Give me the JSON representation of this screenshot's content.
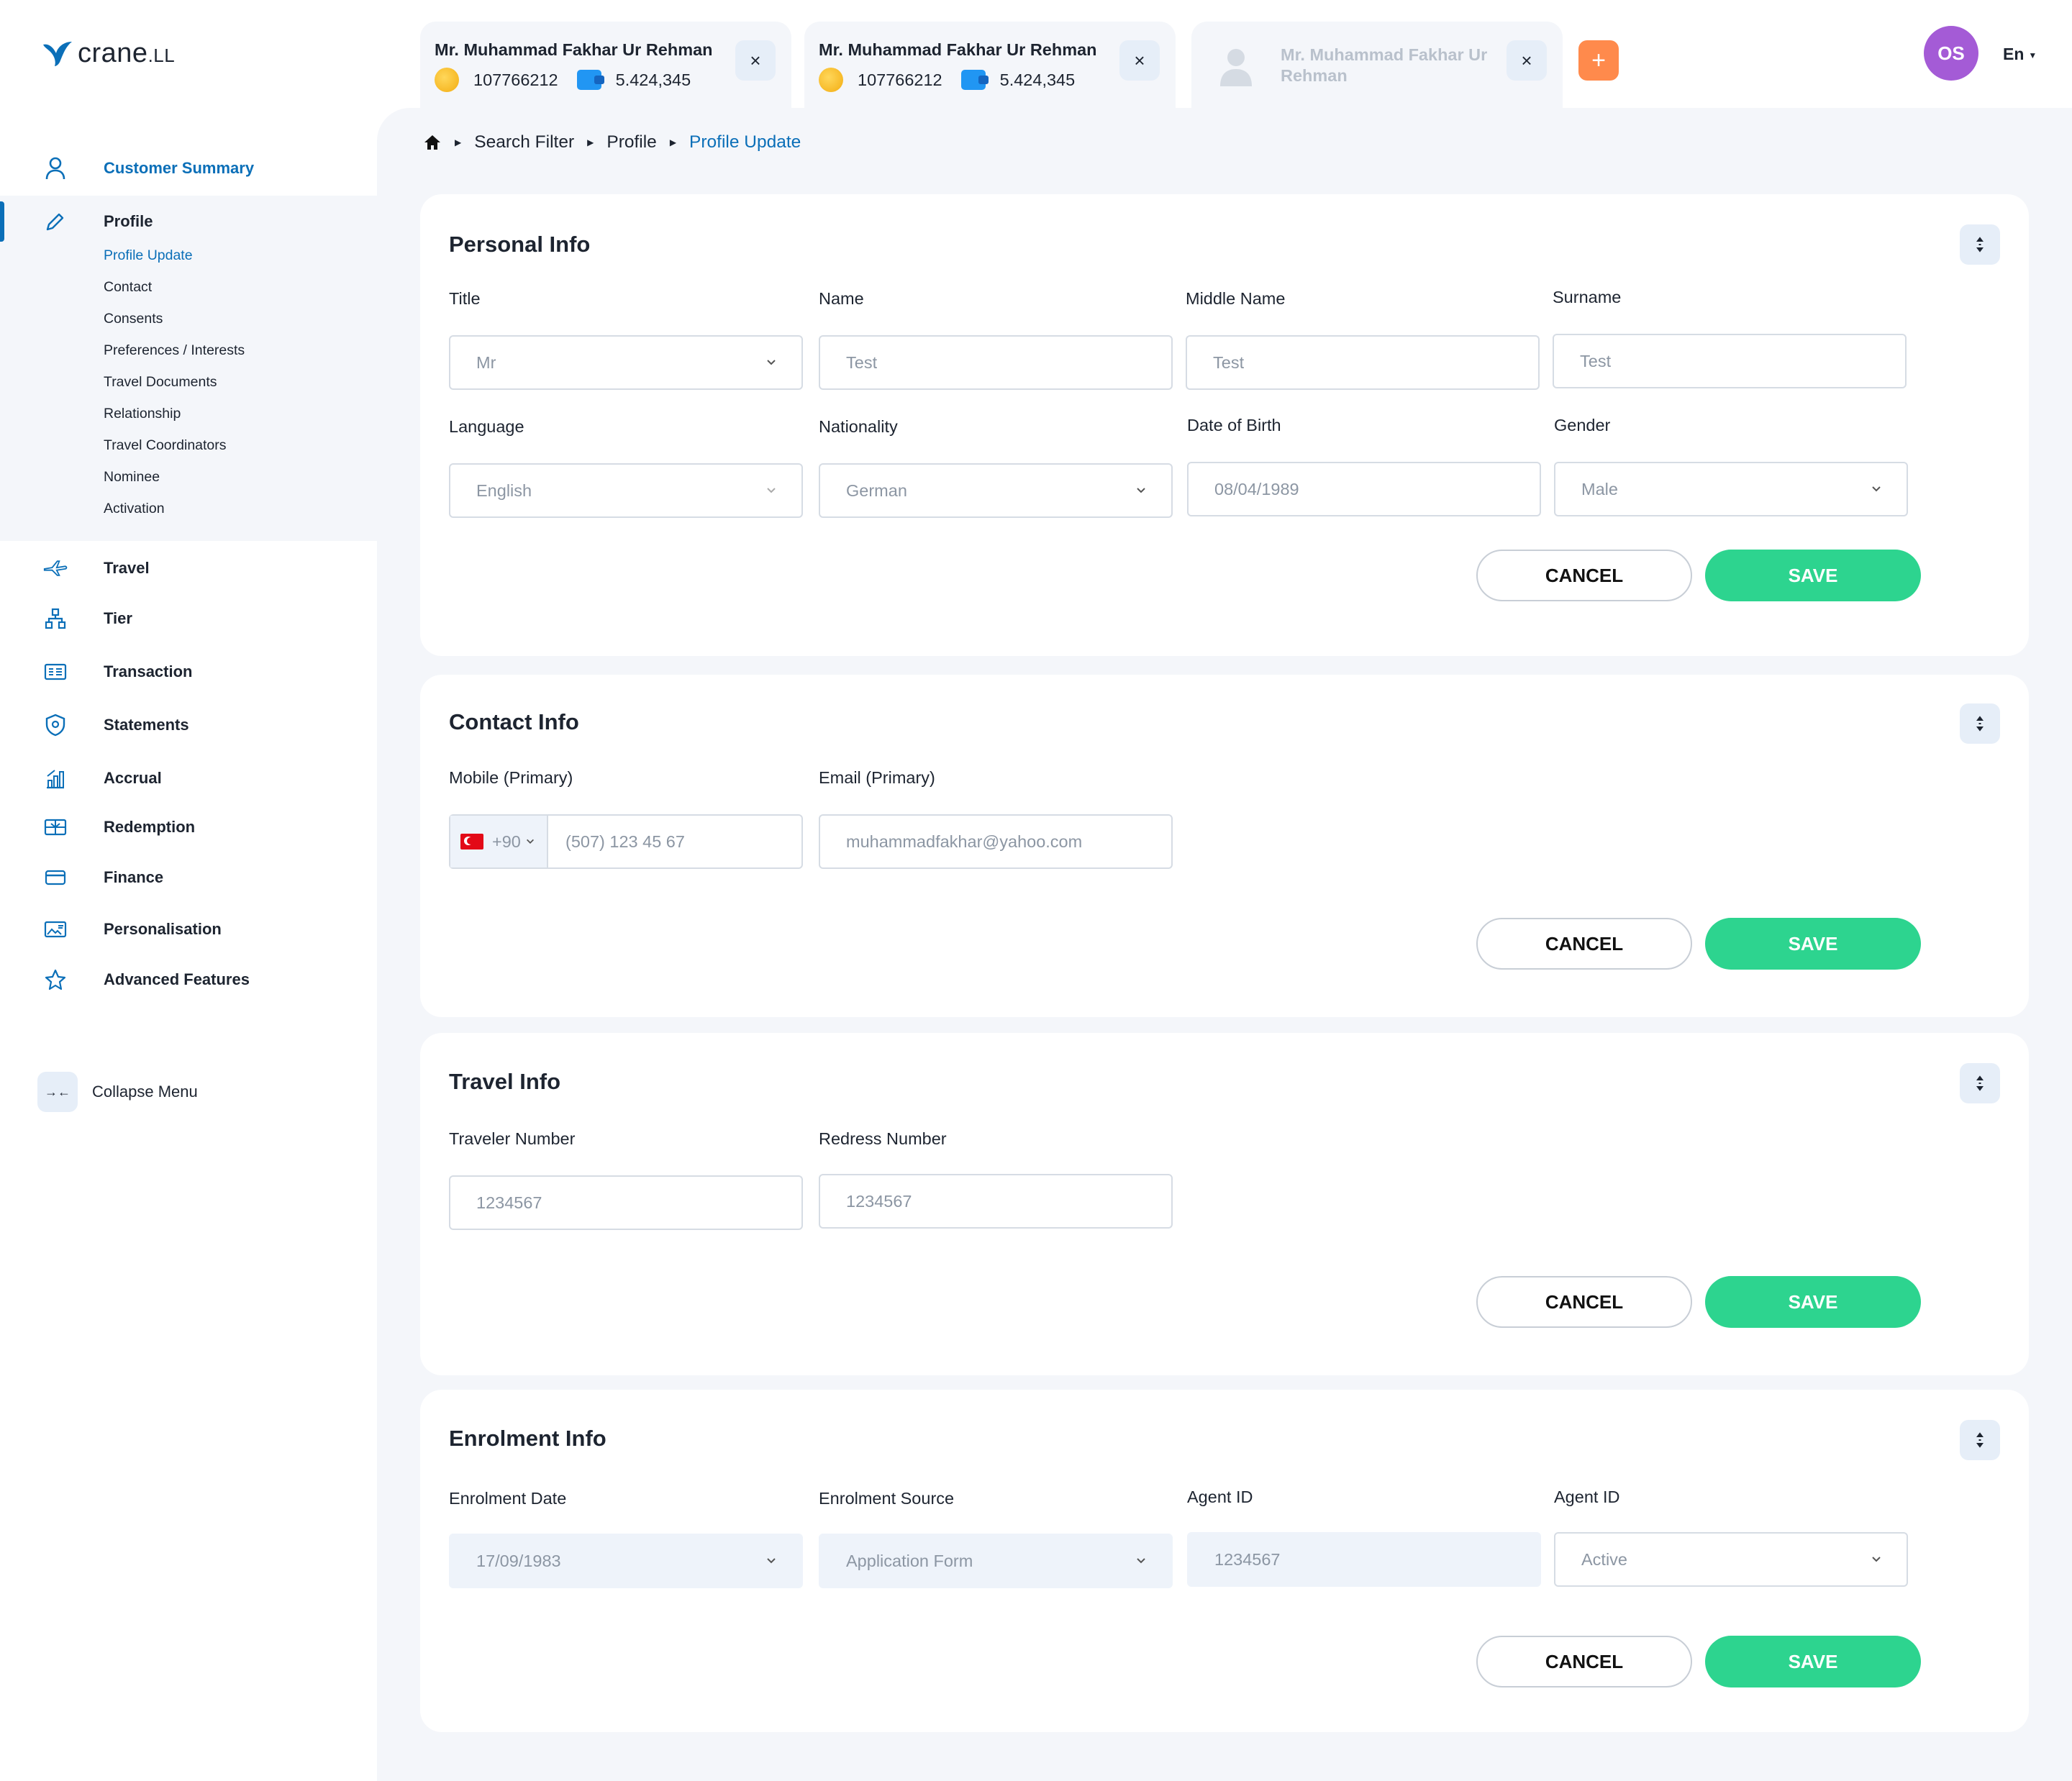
{
  "app": {
    "logo_text": "crane",
    "logo_suffix": ".LL"
  },
  "sidebar": {
    "customer_summary": "Customer Summary",
    "profile": "Profile",
    "profile_sub": [
      "Profile Update",
      "Contact",
      "Consents",
      "Preferences / Interests",
      "Travel Documents",
      "Relationship",
      "Travel Coordinators",
      "Nominee",
      "Activation"
    ],
    "items": [
      "Travel",
      "Tier",
      "Transaction",
      "Statements",
      "Accrual",
      "Redemption",
      "Finance",
      "Personalisation",
      "Advanced Features"
    ],
    "collapse": "Collapse Menu"
  },
  "tabs": [
    {
      "name": "Mr. Muhammad Fakhar Ur Rehman",
      "member_id": "107766212",
      "points": "5.424,345"
    },
    {
      "name": "Mr. Muhammad Fakhar Ur Rehman",
      "member_id": "107766212",
      "points": "5.424,345"
    },
    {
      "name": "Mr. Muhammad Fakhar Ur Rehman"
    }
  ],
  "header": {
    "avatar_initials": "OS",
    "language": "En",
    "close_glyph": "×",
    "add_glyph": "+"
  },
  "breadcrumb": [
    "Search Filter",
    "Profile",
    "Profile Update"
  ],
  "personal": {
    "title": "Personal Info",
    "labels": {
      "title": "Title",
      "name": "Name",
      "middle": "Middle Name",
      "surname": "Surname",
      "language": "Language",
      "nationality": "Nationality",
      "dob": "Date of Birth",
      "gender": "Gender"
    },
    "values": {
      "title": "Mr",
      "name": "Test",
      "middle": "Test",
      "surname": "Test",
      "language": "English",
      "nationality": "German",
      "dob": "08/04/1989",
      "gender": "Male"
    }
  },
  "contact": {
    "title": "Contact Info",
    "labels": {
      "mobile": "Mobile (Primary)",
      "email": "Email (Primary)"
    },
    "values": {
      "country_code": "+90",
      "mobile": "(507) 123 45 67",
      "email": "muhammadfakhar@yahoo.com"
    }
  },
  "travel": {
    "title": "Travel Info",
    "labels": {
      "traveler": "Traveler Number",
      "redress": "Redress Number"
    },
    "values": {
      "traveler": "1234567",
      "redress": "1234567"
    }
  },
  "enrolment": {
    "title": "Enrolment Info",
    "labels": {
      "date": "Enrolment Date",
      "source": "Enrolment Source",
      "agent": "Agent ID",
      "status": "Agent ID"
    },
    "values": {
      "date": "17/09/1983",
      "source": "Application Form",
      "agent": "1234567",
      "status": "Active"
    }
  },
  "buttons": {
    "cancel": "CANCEL",
    "save": "SAVE"
  },
  "colors": {
    "accent": "#0b6fb8",
    "save": "#2dd48f",
    "add": "#ff8a4c",
    "avatar": "#a45bd6"
  }
}
